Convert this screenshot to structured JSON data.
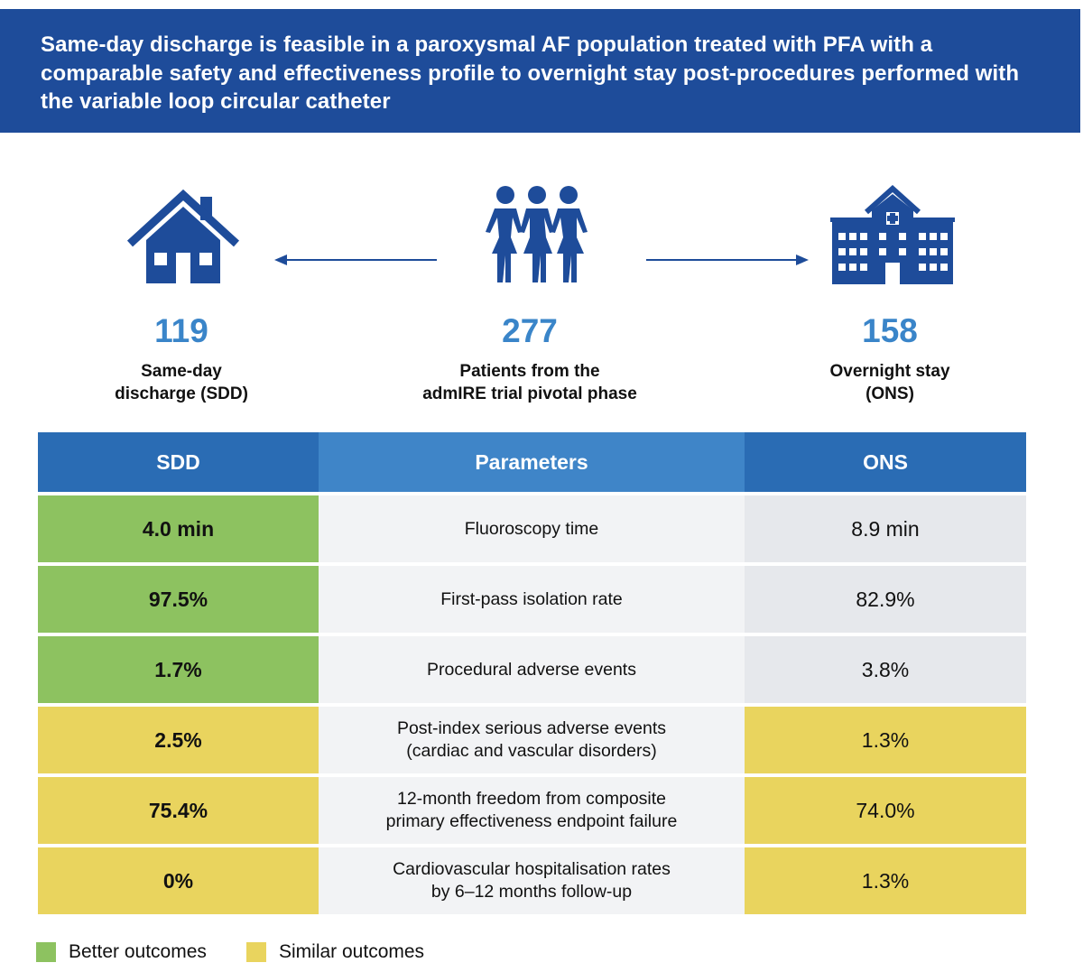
{
  "header": {
    "title": "Same-day discharge is feasible in a paroxysmal AF population treated with PFA with a comparable safety and effectiveness profile to overnight stay post-procedures performed with the variable loop circular catheter"
  },
  "colors": {
    "banner": "#1e4c9a",
    "accent": "#3a85c9",
    "icon": "#1e4c9a",
    "better": "#8dc260",
    "similar": "#e9d45e"
  },
  "groups": {
    "sdd": {
      "count": "119",
      "label_line1": "Same-day",
      "label_line2": "discharge (SDD)",
      "icon": "house-icon"
    },
    "total": {
      "count": "277",
      "label_line1": "Patients from the",
      "label_line2": "admIRE trial pivotal phase",
      "icon": "people-icon"
    },
    "ons": {
      "count": "158",
      "label_line1": "Overnight stay",
      "label_line2": "(ONS)",
      "icon": "hospital-icon"
    }
  },
  "table": {
    "headers": {
      "sdd": "SDD",
      "parameters": "Parameters",
      "ons": "ONS"
    },
    "rows": [
      {
        "sdd": "4.0 min",
        "param_line1": "Fluoroscopy time",
        "param_line2": "",
        "ons": "8.9 min",
        "outcome": "better"
      },
      {
        "sdd": "97.5%",
        "param_line1": "First-pass isolation rate",
        "param_line2": "",
        "ons": "82.9%",
        "outcome": "better"
      },
      {
        "sdd": "1.7%",
        "param_line1": "Procedural adverse events",
        "param_line2": "",
        "ons": "3.8%",
        "outcome": "better"
      },
      {
        "sdd": "2.5%",
        "param_line1": "Post-index serious adverse events",
        "param_line2": "(cardiac and vascular disorders)",
        "ons": "1.3%",
        "outcome": "similar"
      },
      {
        "sdd": "75.4%",
        "param_line1": "12-month freedom from composite",
        "param_line2": "primary effectiveness endpoint failure",
        "ons": "74.0%",
        "outcome": "similar"
      },
      {
        "sdd": "0%",
        "param_line1": "Cardiovascular hospitalisation rates",
        "param_line2": "by 6–12 months follow-up",
        "ons": "1.3%",
        "outcome": "similar"
      }
    ]
  },
  "legend": {
    "better": "Better outcomes",
    "similar": "Similar outcomes"
  }
}
